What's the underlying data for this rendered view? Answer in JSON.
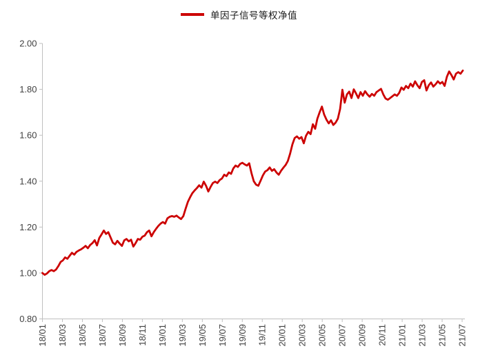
{
  "legend": {
    "label": "单因子信号等权净值",
    "line_color": "#cc0000"
  },
  "chart_data": {
    "type": "line",
    "title": "",
    "xlabel": "",
    "ylabel": "",
    "grid": false,
    "legend_position": "top-center",
    "axis_color": "#bfbfbf",
    "tick_label_color": "#3f3f3f",
    "ylim": [
      0.8,
      2.0
    ],
    "y_tick_labels": [
      "0.80",
      "1.00",
      "1.20",
      "1.40",
      "1.60",
      "1.80",
      "2.00"
    ],
    "x_tick_labels": [
      "18/01",
      "18/03",
      "18/05",
      "18/07",
      "18/09",
      "18/11",
      "19/01",
      "19/03",
      "19/05",
      "19/07",
      "19/09",
      "19/11",
      "20/01",
      "20/03",
      "20/05",
      "20/07",
      "20/09",
      "20/11",
      "21/01",
      "21/03",
      "21/05",
      "21/07"
    ],
    "x_frequency": "weekly",
    "series": [
      {
        "name": "单因子信号等权净值",
        "color": "#cc0000",
        "values": [
          1.0,
          0.992,
          0.998,
          1.008,
          1.013,
          1.008,
          1.015,
          1.03,
          1.048,
          1.055,
          1.068,
          1.062,
          1.075,
          1.088,
          1.08,
          1.092,
          1.098,
          1.103,
          1.11,
          1.118,
          1.108,
          1.122,
          1.13,
          1.143,
          1.12,
          1.152,
          1.168,
          1.185,
          1.17,
          1.178,
          1.155,
          1.132,
          1.125,
          1.14,
          1.128,
          1.118,
          1.142,
          1.148,
          1.138,
          1.145,
          1.115,
          1.13,
          1.148,
          1.145,
          1.158,
          1.163,
          1.178,
          1.185,
          1.16,
          1.178,
          1.192,
          1.205,
          1.215,
          1.222,
          1.215,
          1.238,
          1.245,
          1.248,
          1.245,
          1.25,
          1.242,
          1.235,
          1.248,
          1.28,
          1.31,
          1.33,
          1.348,
          1.36,
          1.37,
          1.382,
          1.372,
          1.398,
          1.38,
          1.355,
          1.375,
          1.392,
          1.398,
          1.392,
          1.405,
          1.412,
          1.428,
          1.422,
          1.438,
          1.432,
          1.455,
          1.468,
          1.462,
          1.475,
          1.48,
          1.473,
          1.468,
          1.478,
          1.435,
          1.4,
          1.385,
          1.38,
          1.402,
          1.425,
          1.442,
          1.448,
          1.46,
          1.445,
          1.452,
          1.438,
          1.428,
          1.445,
          1.458,
          1.47,
          1.488,
          1.52,
          1.56,
          1.588,
          1.595,
          1.585,
          1.592,
          1.565,
          1.598,
          1.615,
          1.605,
          1.648,
          1.628,
          1.672,
          1.7,
          1.725,
          1.69,
          1.668,
          1.652,
          1.665,
          1.645,
          1.655,
          1.672,
          1.715,
          1.798,
          1.742,
          1.778,
          1.79,
          1.762,
          1.8,
          1.782,
          1.762,
          1.788,
          1.772,
          1.792,
          1.778,
          1.768,
          1.78,
          1.772,
          1.788,
          1.795,
          1.802,
          1.778,
          1.76,
          1.755,
          1.762,
          1.77,
          1.778,
          1.772,
          1.785,
          1.808,
          1.798,
          1.815,
          1.805,
          1.825,
          1.812,
          1.835,
          1.818,
          1.805,
          1.832,
          1.84,
          1.795,
          1.818,
          1.83,
          1.812,
          1.822,
          1.835,
          1.825,
          1.832,
          1.815,
          1.855,
          1.878,
          1.862,
          1.843,
          1.868,
          1.875,
          1.868,
          1.882
        ]
      }
    ]
  }
}
